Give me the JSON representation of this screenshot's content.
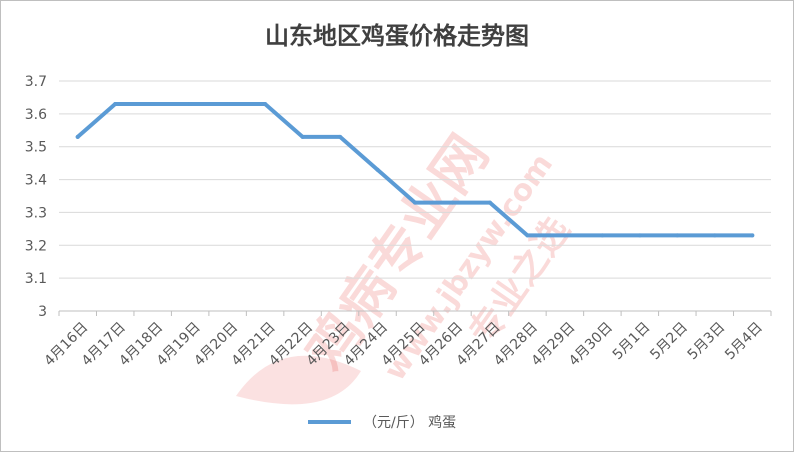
{
  "chart_data": {
    "type": "line",
    "title": "山东地区鸡蛋价格走势图",
    "xlabel": "",
    "ylabel": "",
    "categories": [
      "4月16日",
      "4月17日",
      "4月18日",
      "4月19日",
      "4月20日",
      "4月21日",
      "4月22日",
      "4月23日",
      "4月24日",
      "4月25日",
      "4月26日",
      "4月27日",
      "4月28日",
      "4月29日",
      "4月30日",
      "5月1日",
      "5月2日",
      "5月3日",
      "5月4日"
    ],
    "series": [
      {
        "name": "（元/斤） 鸡蛋",
        "values": [
          3.53,
          3.63,
          3.63,
          3.63,
          3.63,
          3.63,
          3.53,
          3.53,
          3.43,
          3.33,
          3.33,
          3.33,
          3.23,
          3.23,
          3.23,
          3.23,
          3.23,
          3.23,
          3.23
        ]
      }
    ],
    "ylim": [
      3,
      3.7
    ],
    "yticks": [
      "3",
      "3.1",
      "3.2",
      "3.3",
      "3.4",
      "3.5",
      "3.6",
      "3.7"
    ],
    "grid": true,
    "legend": "bottom-center",
    "colors": {
      "line": "#5b9bd5",
      "grid": "#d9d9d9",
      "axis": "#bfbfbf"
    }
  },
  "watermark": {
    "brand": "鸡病专业网",
    "url": "www.jbzyw.com",
    "slogan": "专业之选"
  }
}
